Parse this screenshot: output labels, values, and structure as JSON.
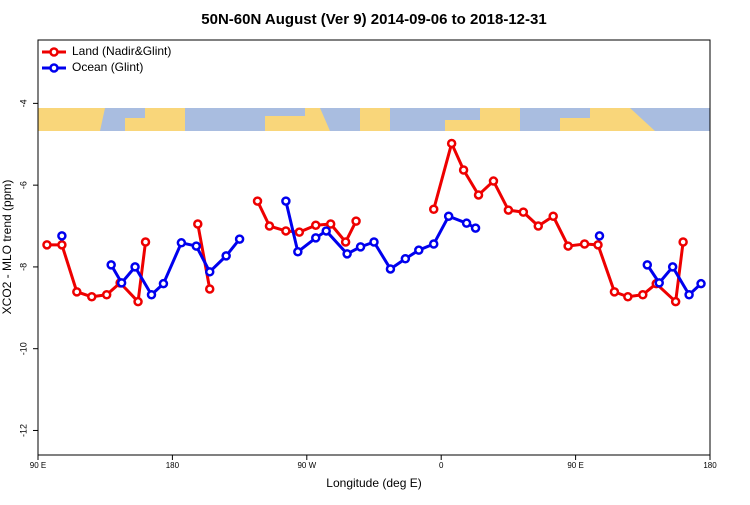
{
  "chart_data": {
    "type": "line",
    "title": "50N-60N August (Ver 9)   2014-09-06 to 2018-12-31",
    "x_label": "Longitude (deg E)",
    "y_label": "XCO2 - MLO trend (ppm)",
    "xlim": [
      90,
      540
    ],
    "ylim": [
      -12.6,
      -2.45
    ],
    "xticks": [
      {
        "value": 90,
        "label": "90 E"
      },
      180,
      {
        "value": 270,
        "label": "90 W"
      },
      {
        "value": 360,
        "label": "0"
      },
      {
        "value": 450,
        "label": "90 E"
      },
      {
        "value": 540,
        "label": "180"
      }
    ],
    "yticks": [
      -12,
      -10,
      -8,
      -6,
      -4
    ],
    "grid": false,
    "legend": "top-left",
    "series": [
      {
        "name": "Land (Nadir&Glint)",
        "color": "#ee0000",
        "x": [
          96,
          106,
          116,
          126,
          136,
          145,
          157,
          162,
          180,
          197,
          205,
          220,
          237,
          245,
          256,
          265,
          276,
          286,
          296,
          303,
          330,
          355,
          367,
          375,
          385,
          395,
          405,
          415,
          425,
          435,
          445,
          456,
          465,
          476,
          485,
          495,
          504,
          517,
          522
        ],
        "values": [
          -7.46,
          -7.46,
          -8.61,
          -8.73,
          -8.68,
          -8.39,
          -8.85,
          -7.39,
          null,
          -6.95,
          -8.54,
          null,
          -6.39,
          -7.0,
          -7.12,
          -7.15,
          -6.98,
          -6.95,
          -7.39,
          -6.88,
          null,
          -6.59,
          -4.98,
          -5.63,
          -6.24,
          -5.9,
          -6.61,
          -6.66,
          -7.0,
          -6.76,
          -7.49,
          -7.44,
          -7.46,
          -8.61,
          -8.73,
          -8.68,
          -8.41,
          -8.85,
          -7.39
        ]
      },
      {
        "name": "Ocean (Glint)",
        "color": "#0000ee",
        "x": [
          106,
          120,
          139,
          146,
          155,
          166,
          174,
          186,
          196,
          205,
          216,
          225,
          240,
          256,
          264,
          276,
          283,
          297,
          306,
          315,
          326,
          336,
          345,
          355,
          365,
          377,
          383,
          420,
          466,
          480,
          498,
          506,
          515,
          526,
          534
        ],
        "values": [
          -7.24,
          null,
          -7.95,
          -8.39,
          -8.0,
          -8.68,
          -8.41,
          -7.41,
          -7.49,
          -8.12,
          -7.73,
          -7.32,
          null,
          -6.39,
          -7.63,
          -7.29,
          -7.12,
          -7.68,
          -7.51,
          -7.39,
          -8.05,
          -7.8,
          -7.59,
          -7.44,
          -6.76,
          -6.93,
          -7.05,
          null,
          -7.24,
          null,
          -7.95,
          -8.39,
          -8.0,
          -8.68,
          -8.41
        ]
      }
    ]
  }
}
